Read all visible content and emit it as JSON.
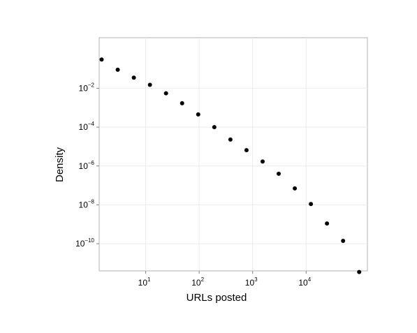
{
  "chart_data": {
    "type": "scatter",
    "title": "",
    "xlabel": "URLs posted",
    "ylabel": "Density",
    "x_scale": "log10",
    "y_scale": "log10",
    "xlim": [
      1.35,
      140000
    ],
    "ylim": [
      4e-12,
      4
    ],
    "grid": true,
    "legend": "none",
    "x_ticks": [
      {
        "value": 10,
        "base": "10",
        "exp": "1"
      },
      {
        "value": 100,
        "base": "10",
        "exp": "2"
      },
      {
        "value": 1000,
        "base": "10",
        "exp": "3"
      },
      {
        "value": 10000,
        "base": "10",
        "exp": "4"
      }
    ],
    "y_ticks": [
      {
        "value": 0.01,
        "base": "10",
        "exp": "−2"
      },
      {
        "value": 0.0001,
        "base": "10",
        "exp": "−4"
      },
      {
        "value": 1e-06,
        "base": "10",
        "exp": "−6"
      },
      {
        "value": 1e-08,
        "base": "10",
        "exp": "−8"
      },
      {
        "value": 1e-10,
        "base": "10",
        "exp": "−10"
      }
    ],
    "points": [
      {
        "x": 1.5,
        "y": 0.3
      },
      {
        "x": 3,
        "y": 0.09
      },
      {
        "x": 6,
        "y": 0.035
      },
      {
        "x": 12,
        "y": 0.015
      },
      {
        "x": 24,
        "y": 0.0055
      },
      {
        "x": 48,
        "y": 0.0017
      },
      {
        "x": 96,
        "y": 0.00045
      },
      {
        "x": 192,
        "y": 0.0001
      },
      {
        "x": 384,
        "y": 2.3e-05
      },
      {
        "x": 768,
        "y": 6.5e-06
      },
      {
        "x": 1536,
        "y": 1.7e-06
      },
      {
        "x": 3072,
        "y": 4e-07
      },
      {
        "x": 6144,
        "y": 7e-08
      },
      {
        "x": 12288,
        "y": 1.1e-08
      },
      {
        "x": 24576,
        "y": 1.1e-09
      },
      {
        "x": 49152,
        "y": 1.4e-10
      },
      {
        "x": 98304,
        "y": 3.5e-12
      }
    ],
    "colors": {
      "points": "#000000",
      "panel_border": "#b3b3b3",
      "grid": "#ebebeb"
    }
  }
}
